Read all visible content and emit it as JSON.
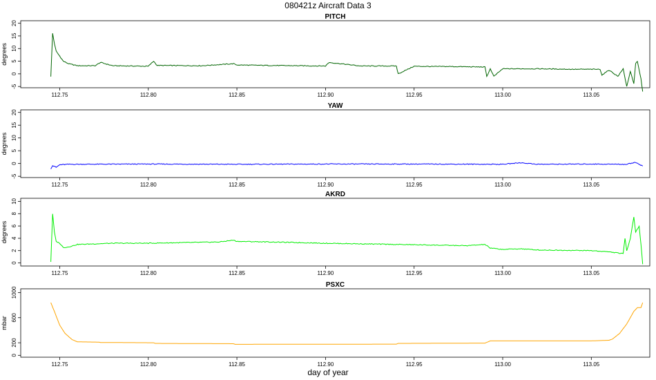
{
  "title": "080421z   Aircraft Data 3",
  "xlabel": "day of year",
  "chart_data": [
    {
      "type": "line",
      "title": "PITCH",
      "ylabel": "degrees",
      "color": "#006400",
      "xlim": [
        112.728,
        113.083
      ],
      "ylim": [
        -5.5,
        21
      ],
      "xticks": [
        "112.75",
        "112.80",
        "112.85",
        "112.90",
        "112.95",
        "113.00",
        "113.05"
      ],
      "yticks": [
        "-5",
        "0",
        "5",
        "10",
        "15",
        "20"
      ],
      "series": [
        {
          "x": [
            112.745,
            112.746,
            112.747,
            112.748,
            112.75,
            112.752,
            112.755,
            112.76,
            112.77,
            112.773,
            112.78,
            112.79,
            112.8,
            112.803,
            112.805,
            112.81,
            112.83,
            112.848,
            112.85,
            112.87,
            112.9,
            112.902,
            112.92,
            112.94,
            112.941,
            112.95,
            112.96,
            112.97,
            112.98,
            112.99,
            112.991,
            112.993,
            112.995,
            113.0,
            113.02,
            113.04,
            113.055,
            113.056,
            113.06,
            113.065,
            113.068,
            113.07,
            113.072,
            113.074,
            113.075,
            113.076,
            113.078,
            113.079
          ],
          "y": [
            -1,
            16,
            12,
            9,
            7,
            5,
            4,
            3.2,
            3.2,
            4.5,
            3.2,
            3.1,
            3,
            5,
            3.3,
            3.3,
            3.2,
            4,
            3.5,
            3.3,
            3.1,
            4.5,
            3.1,
            3.1,
            0,
            3,
            2.9,
            2.9,
            2.8,
            2.7,
            -1,
            2,
            -1,
            2,
            2,
            1.8,
            1.8,
            -0.5,
            1.5,
            -1,
            2,
            -5,
            1,
            -4,
            4,
            5,
            -2,
            -7
          ]
        }
      ]
    },
    {
      "type": "line",
      "title": "YAW",
      "ylabel": "degrees",
      "color": "#0000ff",
      "xlim": [
        112.728,
        113.083
      ],
      "ylim": [
        -5.5,
        21
      ],
      "xticks": [
        "112.75",
        "112.80",
        "112.85",
        "112.90",
        "112.95",
        "113.00",
        "113.05"
      ],
      "yticks": [
        "-5",
        "0",
        "5",
        "10",
        "15",
        "20"
      ],
      "series": [
        {
          "x": [
            112.745,
            112.746,
            112.748,
            112.75,
            112.755,
            112.8,
            112.85,
            112.9,
            112.95,
            113.0,
            113.01,
            113.02,
            113.05,
            113.07,
            113.075,
            113.079
          ],
          "y": [
            -2,
            -0.8,
            -1.5,
            -0.5,
            -0.3,
            -0.2,
            -0.3,
            -0.2,
            -0.2,
            -0.3,
            0.3,
            -0.3,
            -0.2,
            -0.3,
            0.5,
            -1
          ]
        }
      ]
    },
    {
      "type": "line",
      "title": "AKRD",
      "ylabel": "degrees",
      "color": "#00ee00",
      "xlim": [
        112.728,
        113.083
      ],
      "ylim": [
        -0.5,
        10.5
      ],
      "xticks": [
        "112.75",
        "112.80",
        "112.85",
        "112.90",
        "112.95",
        "113.00",
        "113.05"
      ],
      "yticks": [
        "0",
        "2",
        "4",
        "6",
        "8",
        "10"
      ],
      "series": [
        {
          "x": [
            112.745,
            112.746,
            112.747,
            112.748,
            112.75,
            112.752,
            112.755,
            112.76,
            112.77,
            112.78,
            112.8,
            112.82,
            112.84,
            112.848,
            112.85,
            112.87,
            112.9,
            112.92,
            112.94,
            112.96,
            112.98,
            112.99,
            112.993,
            113.0,
            113.01,
            113.02,
            113.05,
            113.06,
            113.068,
            113.069,
            113.07,
            113.072,
            113.074,
            113.075,
            113.077,
            113.078,
            113.079
          ],
          "y": [
            0.2,
            8,
            5,
            3.5,
            3.2,
            2.5,
            2.6,
            3,
            3.1,
            3.2,
            3.2,
            3.3,
            3.4,
            3.7,
            3.5,
            3.4,
            3.2,
            3.1,
            3,
            2.9,
            2.8,
            3,
            2.4,
            2.2,
            2.3,
            2.1,
            2,
            1.8,
            1.5,
            4,
            2,
            4,
            7.5,
            5,
            6,
            3,
            -0.2
          ]
        }
      ]
    },
    {
      "type": "line",
      "title": "PSXC",
      "ylabel": "mbar",
      "color": "#ffa500",
      "xlim": [
        112.728,
        113.083
      ],
      "ylim": [
        -30,
        1060
      ],
      "xticks": [
        "112.75",
        "112.80",
        "112.85",
        "112.90",
        "112.95",
        "113.00",
        "113.05"
      ],
      "yticks": [
        "0",
        "200",
        "600",
        "1000"
      ],
      "series": [
        {
          "x": [
            112.745,
            112.747,
            112.75,
            112.753,
            112.757,
            112.76,
            112.772,
            112.773,
            112.803,
            112.804,
            112.848,
            112.849,
            112.94,
            112.941,
            112.99,
            112.993,
            113.05,
            113.06,
            113.062,
            113.066,
            113.07,
            113.074,
            113.076,
            113.078,
            113.079
          ],
          "y": [
            840,
            700,
            480,
            350,
            250,
            215,
            210,
            205,
            200,
            190,
            185,
            175,
            178,
            190,
            195,
            230,
            230,
            240,
            260,
            350,
            500,
            700,
            760,
            760,
            840
          ]
        }
      ]
    }
  ]
}
